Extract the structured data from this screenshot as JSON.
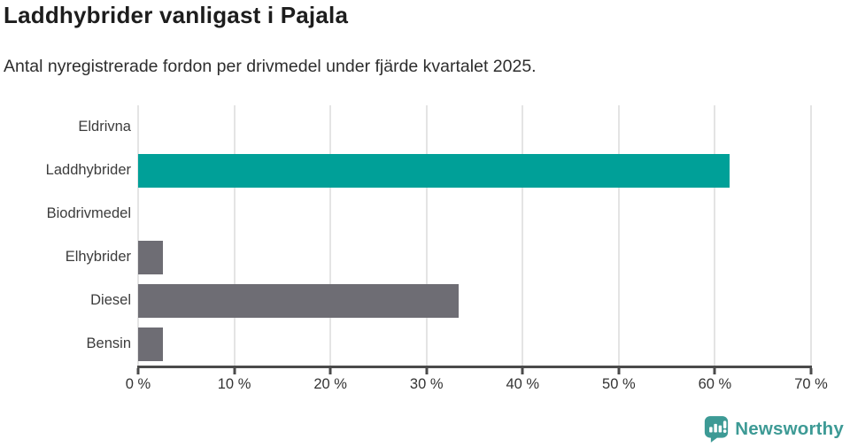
{
  "header": {
    "title": "Laddhybrider vanligast i Pajala",
    "subtitle": "Antal nyregistrerade fordon per drivmedel under fjärde kvartalet 2025."
  },
  "chart_data": {
    "type": "bar",
    "orientation": "horizontal",
    "title": "Laddhybrider vanligast i Pajala",
    "subtitle": "Antal nyregistrerade fordon per drivmedel under fjärde kvartalet 2025.",
    "categories": [
      "Eldrivna",
      "Laddhybrider",
      "Biodrivmedel",
      "Elhybrider",
      "Diesel",
      "Bensin"
    ],
    "values": [
      0,
      61.5,
      0,
      2.6,
      33.3,
      2.6
    ],
    "unit": "%",
    "xlabel": "",
    "ylabel": "",
    "xlim": [
      0,
      70
    ],
    "x_tick_values": [
      0,
      10,
      20,
      30,
      40,
      50,
      60,
      70
    ],
    "x_tick_labels": [
      "0 %",
      "10 %",
      "20 %",
      "30 %",
      "40 %",
      "50 %",
      "60 %",
      "70 %"
    ],
    "grid": true,
    "legend": "none",
    "highlight_category": "Laddhybrider",
    "bar_colors": [
      "#6e6d74",
      "#00a098",
      "#6e6d74",
      "#6e6d74",
      "#6e6d74",
      "#6e6d74"
    ]
  },
  "colors": {
    "highlight": "#00a098",
    "default_bar": "#6e6d74",
    "gridline": "#e4e4e4",
    "axis": "#4b4b4b",
    "brand": "#3d9a95"
  },
  "branding": {
    "logo_text": "Newsworthy",
    "logo_icon": "newsworthy-speech-bubble-chart-icon"
  }
}
